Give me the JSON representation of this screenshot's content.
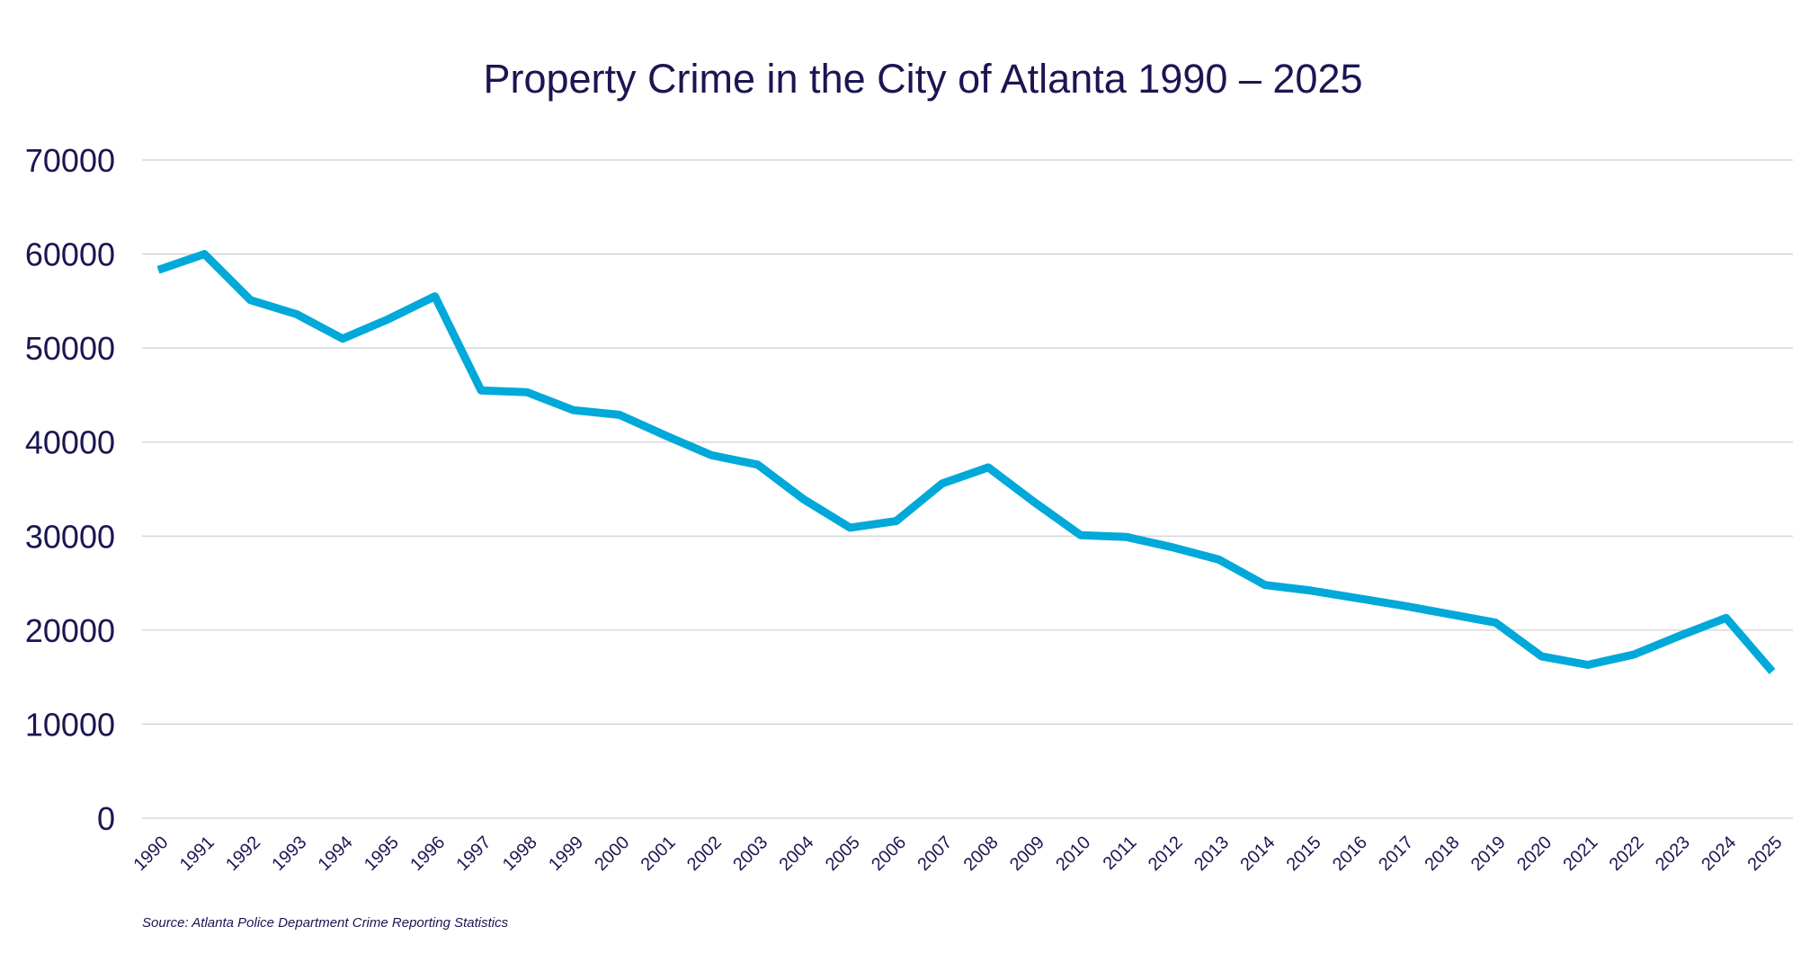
{
  "chart_data": {
    "type": "line",
    "title": "Property Crime in the City of Atlanta 1990 – 2025",
    "xlabel": "",
    "ylabel": "",
    "ylim": [
      0,
      70000
    ],
    "yticks": [
      "0",
      "10000",
      "20000",
      "30000",
      "40000",
      "50000",
      "60000",
      "70000"
    ],
    "grid": true,
    "categories": [
      "1990",
      "1991",
      "1992",
      "1993",
      "1994",
      "1995",
      "1996",
      "1997",
      "1998",
      "1999",
      "2000",
      "2001",
      "2002",
      "2003",
      "2004",
      "2005",
      "2006",
      "2007",
      "2008",
      "2009",
      "2010",
      "2011",
      "2012",
      "2013",
      "2014",
      "2015",
      "2016",
      "2017",
      "2018",
      "2019",
      "2020",
      "2021",
      "2022",
      "2023",
      "2024",
      "2025"
    ],
    "series": [
      {
        "name": "Property Crime",
        "color": "#00a9d9",
        "values": [
          58300,
          60000,
          55100,
          53600,
          51000,
          53100,
          55500,
          45500,
          45300,
          43400,
          42900,
          40700,
          38600,
          37600,
          33900,
          30900,
          31600,
          35600,
          37300,
          33600,
          30100,
          29900,
          28800,
          27500,
          24800,
          24200,
          23400,
          22600,
          21700,
          20800,
          17200,
          16300,
          17400,
          19400,
          21300,
          15600
        ]
      }
    ],
    "source": "Source: Atlanta Police Department Crime Reporting Statistics"
  }
}
